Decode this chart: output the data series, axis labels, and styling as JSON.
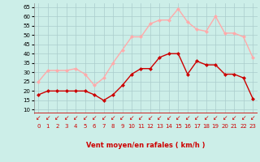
{
  "x": [
    0,
    1,
    2,
    3,
    4,
    5,
    6,
    7,
    8,
    9,
    10,
    11,
    12,
    13,
    14,
    15,
    16,
    17,
    18,
    19,
    20,
    21,
    22,
    23
  ],
  "moyen": [
    18,
    20,
    20,
    20,
    20,
    20,
    18,
    15,
    18,
    23,
    29,
    32,
    32,
    38,
    40,
    40,
    29,
    36,
    34,
    34,
    29,
    29,
    27,
    16
  ],
  "rafales": [
    25,
    31,
    31,
    31,
    32,
    29,
    23,
    27,
    35,
    42,
    49,
    49,
    56,
    58,
    58,
    64,
    57,
    53,
    52,
    60,
    51,
    51,
    49,
    38
  ],
  "moyen_color": "#cc0000",
  "rafales_color": "#ffaaaa",
  "bg_color": "#cceee8",
  "grid_color": "#aacccc",
  "xlabel": "Vent moyen/en rafales ( km/h )",
  "ylabel_ticks": [
    10,
    15,
    20,
    25,
    30,
    35,
    40,
    45,
    50,
    55,
    60,
    65
  ],
  "ylim": [
    8,
    67
  ],
  "xlim": [
    -0.5,
    23.5
  ],
  "markersize": 2.5,
  "linewidth": 1.0,
  "xlabel_color": "#cc0000",
  "arrow_color": "#cc0000",
  "tick_fontsize": 5.0,
  "xlabel_fontsize": 6.0
}
